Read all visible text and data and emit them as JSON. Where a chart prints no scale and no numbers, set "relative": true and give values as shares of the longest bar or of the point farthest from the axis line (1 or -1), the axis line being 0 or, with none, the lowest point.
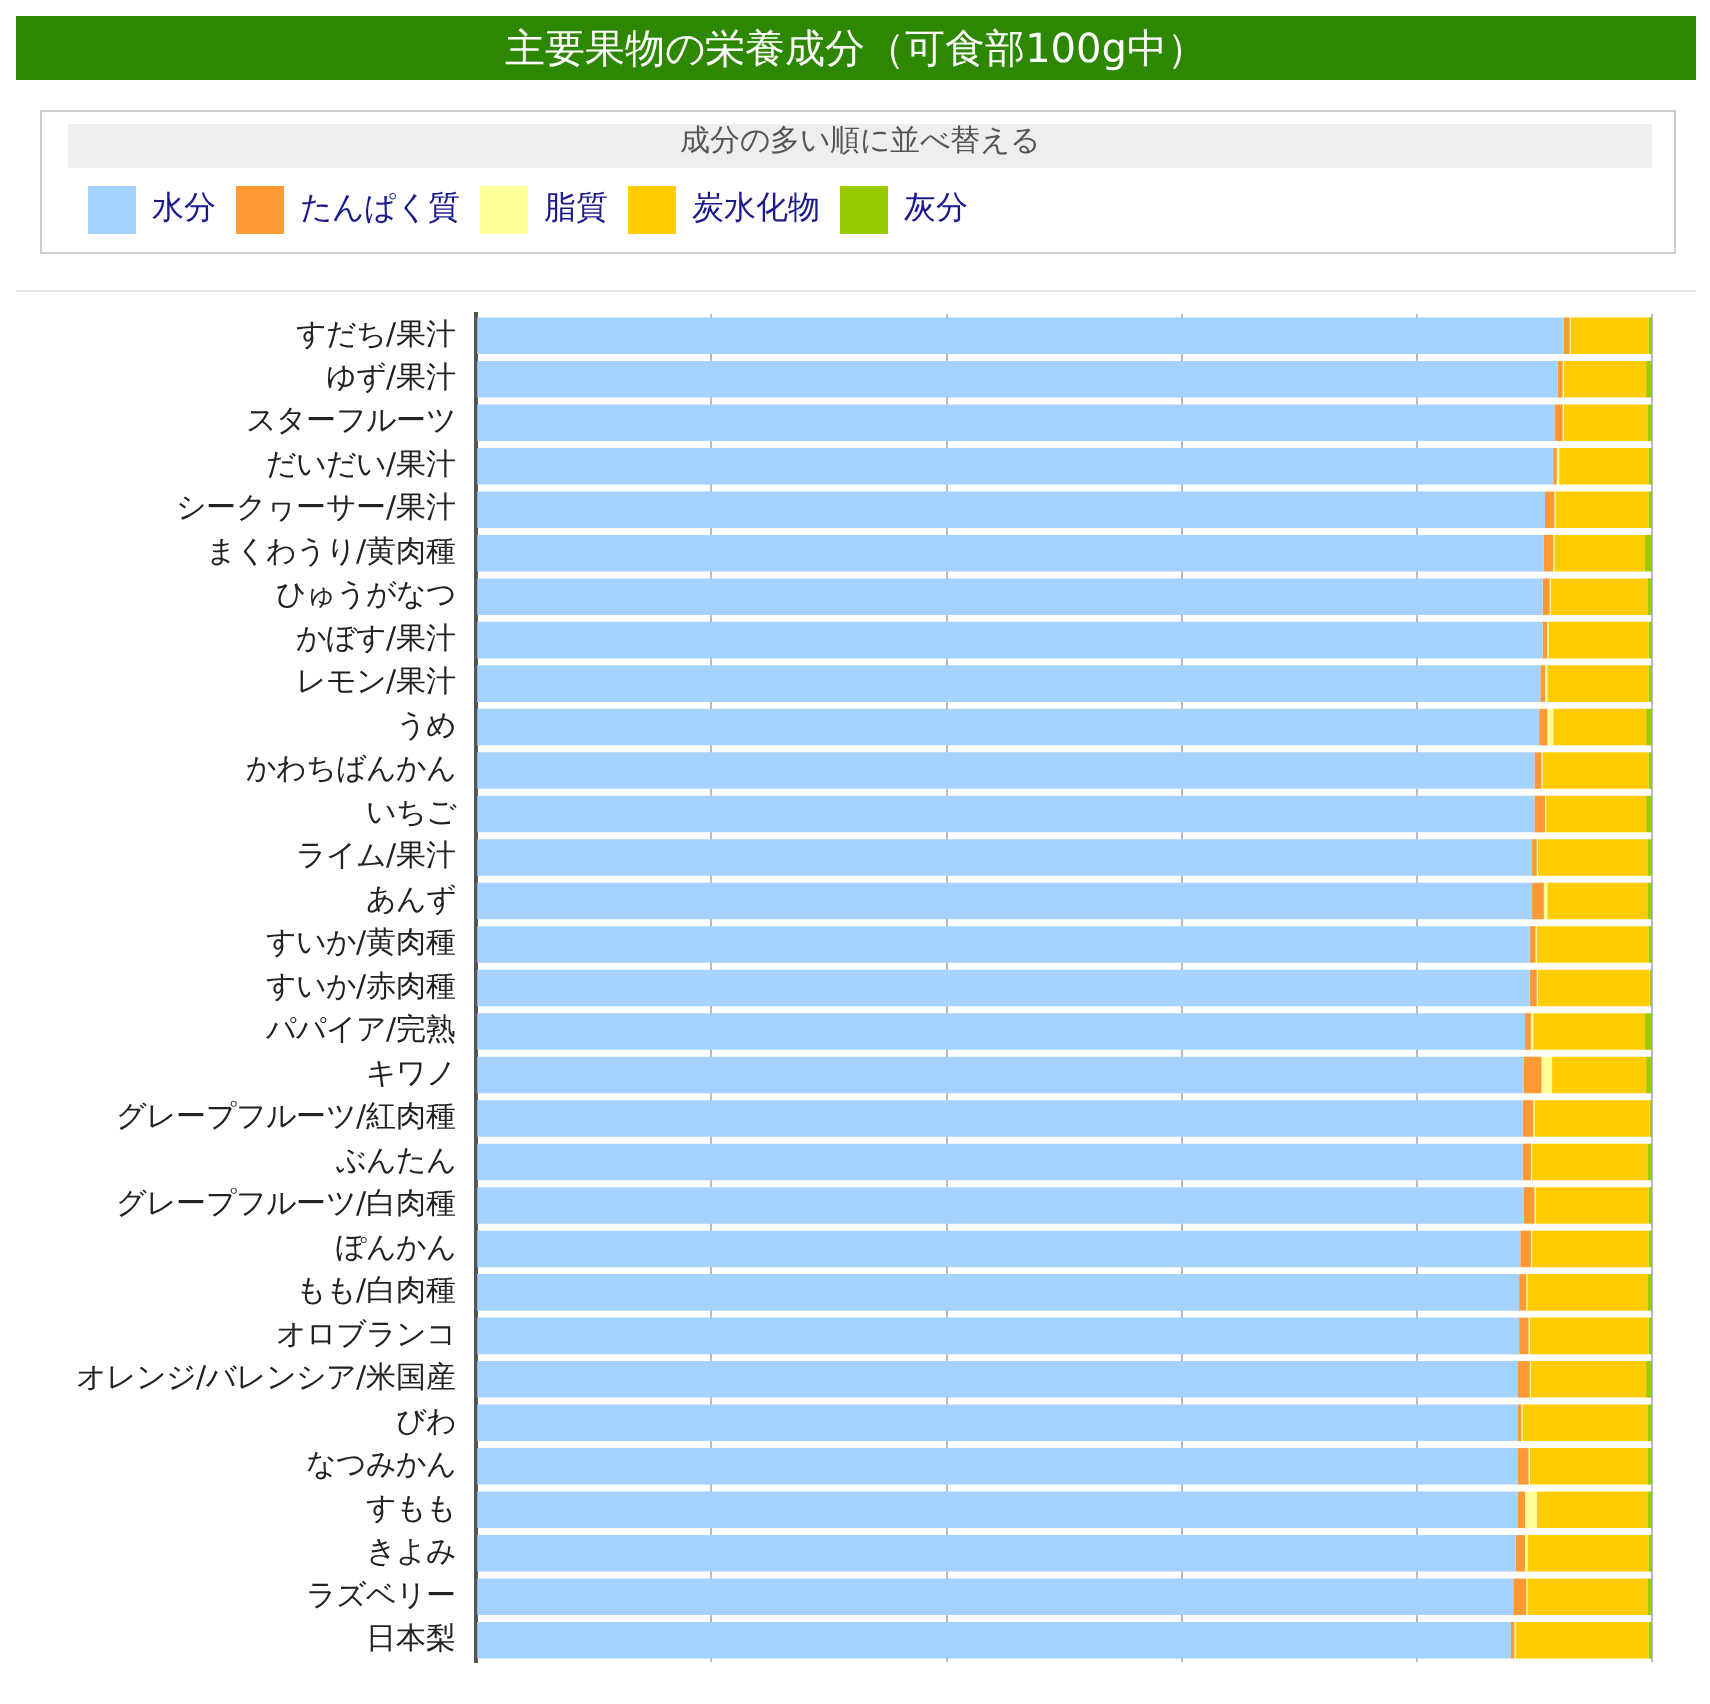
{
  "chart_data": {
    "type": "bar",
    "orientation": "horizontal",
    "stacked": true,
    "relative": true,
    "title": "主要果物の栄養成分（可食部100g中）",
    "subtitle": "成分の多い順に並べ替える",
    "legend": "top",
    "grid": "x",
    "categories": [
      "すだち/果汁",
      "ゆず/果汁",
      "スターフルーツ",
      "だいだい/果汁",
      "シークヮーサー/果汁",
      "まくわうり/黄肉種",
      "ひゅうがなつ",
      "かぼす/果汁",
      "レモン/果汁",
      "うめ",
      "かわちばんかん",
      "いちご",
      "ライム/果汁",
      "あんず",
      "すいか/黄肉種",
      "すいか/赤肉種",
      "パパイア/完熟",
      "キワノ",
      "グレープフルーツ/紅肉種",
      "ぶんたん",
      "グレープフルーツ/白肉種",
      "ぽんかん",
      "もも/白肉種",
      "オロブランコ",
      "オレンジ/バレンシア/米国産",
      "びわ",
      "なつみかん",
      "すもも",
      "きよみ",
      "ラズベリー",
      "日本梨"
    ],
    "series": [
      {
        "name": "水分",
        "color": "#a6d2ff",
        "values": [
          0.925,
          0.92,
          0.917,
          0.916,
          0.909,
          0.908,
          0.907,
          0.907,
          0.905,
          0.904,
          0.9,
          0.9,
          0.898,
          0.898,
          0.896,
          0.896,
          0.892,
          0.891,
          0.89,
          0.89,
          0.891,
          0.888,
          0.887,
          0.887,
          0.886,
          0.886,
          0.886,
          0.886,
          0.884,
          0.882,
          0.88
        ]
      },
      {
        "name": "たんぱく質",
        "color": "#ff9933",
        "values": [
          0.005,
          0.004,
          0.007,
          0.003,
          0.008,
          0.008,
          0.006,
          0.004,
          0.004,
          0.007,
          0.006,
          0.009,
          0.004,
          0.01,
          0.005,
          0.006,
          0.005,
          0.015,
          0.009,
          0.007,
          0.009,
          0.009,
          0.006,
          0.008,
          0.01,
          0.003,
          0.009,
          0.006,
          0.008,
          0.011,
          0.003
        ]
      },
      {
        "name": "脂質",
        "color": "#ffff99",
        "values": [
          0.001,
          0.001,
          0.001,
          0.002,
          0.001,
          0.001,
          0.001,
          0.001,
          0.002,
          0.005,
          0.001,
          0.001,
          0.001,
          0.003,
          0.001,
          0.001,
          0.002,
          0.009,
          0.001,
          0.001,
          0.001,
          0.001,
          0.001,
          0.001,
          0.001,
          0.001,
          0.001,
          0.01,
          0.002,
          0.001,
          0.001
        ]
      },
      {
        "name": "炭水化物",
        "color": "#ffcc00",
        "values": [
          0.066,
          0.07,
          0.071,
          0.076,
          0.079,
          0.077,
          0.082,
          0.085,
          0.086,
          0.079,
          0.09,
          0.085,
          0.093,
          0.085,
          0.095,
          0.095,
          0.095,
          0.08,
          0.098,
          0.098,
          0.096,
          0.099,
          0.102,
          0.101,
          0.098,
          0.106,
          0.1,
          0.094,
          0.103,
          0.102,
          0.113
        ]
      },
      {
        "name": "灰分",
        "color": "#99cc00",
        "values": [
          0.003,
          0.005,
          0.004,
          0.003,
          0.003,
          0.006,
          0.004,
          0.003,
          0.003,
          0.005,
          0.003,
          0.005,
          0.004,
          0.004,
          0.003,
          0.002,
          0.006,
          0.005,
          0.002,
          0.004,
          0.003,
          0.003,
          0.004,
          0.003,
          0.005,
          0.004,
          0.004,
          0.004,
          0.003,
          0.004,
          0.003
        ]
      }
    ]
  }
}
